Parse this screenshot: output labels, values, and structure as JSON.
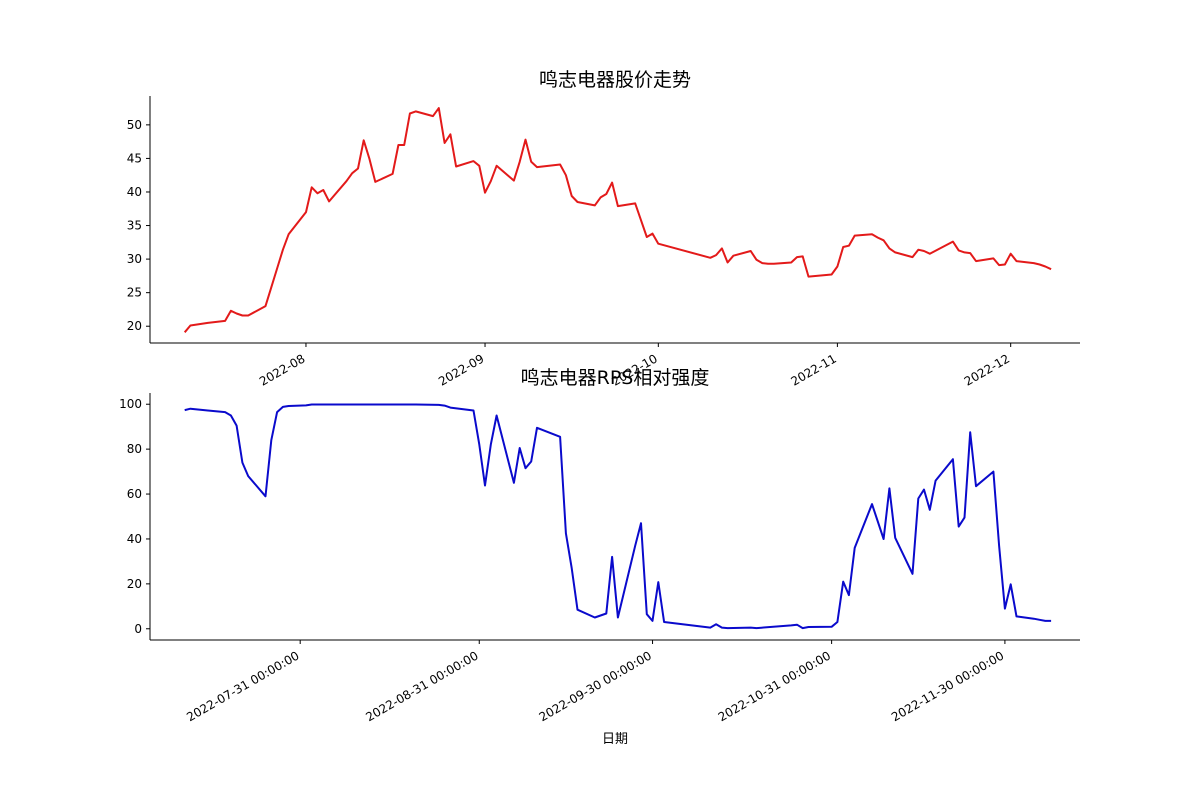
{
  "chart_data": [
    {
      "type": "line",
      "title": "鸣志电器股价走势",
      "xlabel": "",
      "ylabel": "",
      "x_axis": "date",
      "xlim": [
        "2022-07-05",
        "2022-12-13"
      ],
      "ylim": [
        17.5,
        54.3
      ],
      "yticks": [
        20,
        25,
        30,
        35,
        40,
        45,
        50
      ],
      "xticks": [
        "2022-08-01",
        "2022-09-01",
        "2022-10-01",
        "2022-11-01",
        "2022-12-01"
      ],
      "xtick_labels": [
        "2022-08",
        "2022-09",
        "2022-10",
        "2022-11",
        "2022-12"
      ],
      "color": "#e31a1a",
      "grid": false,
      "points": [
        [
          "2022-07-11",
          19.1
        ],
        [
          "2022-07-12",
          20.1
        ],
        [
          "2022-07-15",
          20.5
        ],
        [
          "2022-07-18",
          20.8
        ],
        [
          "2022-07-19",
          22.3
        ],
        [
          "2022-07-20",
          21.9
        ],
        [
          "2022-07-21",
          21.6
        ],
        [
          "2022-07-22",
          21.6
        ],
        [
          "2022-07-25",
          23.0
        ],
        [
          "2022-07-26",
          25.8
        ],
        [
          "2022-07-27",
          28.6
        ],
        [
          "2022-07-28",
          31.4
        ],
        [
          "2022-07-29",
          33.7
        ],
        [
          "2022-08-01",
          37.0
        ],
        [
          "2022-08-02",
          40.7
        ],
        [
          "2022-08-03",
          39.8
        ],
        [
          "2022-08-04",
          40.3
        ],
        [
          "2022-08-05",
          38.6
        ],
        [
          "2022-08-08",
          41.6
        ],
        [
          "2022-08-09",
          42.8
        ],
        [
          "2022-08-10",
          43.5
        ],
        [
          "2022-08-11",
          47.7
        ],
        [
          "2022-08-12",
          44.9
        ],
        [
          "2022-08-13",
          41.5
        ],
        [
          "2022-08-16",
          42.7
        ],
        [
          "2022-08-17",
          47.0
        ],
        [
          "2022-08-18",
          47.0
        ],
        [
          "2022-08-19",
          51.7
        ],
        [
          "2022-08-20",
          52.0
        ],
        [
          "2022-08-23",
          51.3
        ],
        [
          "2022-08-24",
          52.5
        ],
        [
          "2022-08-25",
          47.3
        ],
        [
          "2022-08-26",
          48.6
        ],
        [
          "2022-08-27",
          43.8
        ],
        [
          "2022-08-30",
          44.6
        ],
        [
          "2022-08-31",
          43.9
        ],
        [
          "2022-09-01",
          39.9
        ],
        [
          "2022-09-02",
          41.6
        ],
        [
          "2022-09-03",
          43.9
        ],
        [
          "2022-09-06",
          41.7
        ],
        [
          "2022-09-07",
          44.5
        ],
        [
          "2022-09-08",
          47.8
        ],
        [
          "2022-09-09",
          44.5
        ],
        [
          "2022-09-10",
          43.7
        ],
        [
          "2022-09-14",
          44.1
        ],
        [
          "2022-09-15",
          42.5
        ],
        [
          "2022-09-16",
          39.4
        ],
        [
          "2022-09-17",
          38.5
        ],
        [
          "2022-09-20",
          38.0
        ],
        [
          "2022-09-21",
          39.2
        ],
        [
          "2022-09-22",
          39.7
        ],
        [
          "2022-09-23",
          41.4
        ],
        [
          "2022-09-24",
          37.9
        ],
        [
          "2022-09-27",
          38.3
        ],
        [
          "2022-09-29",
          33.3
        ],
        [
          "2022-09-30",
          33.8
        ],
        [
          "2022-10-01",
          32.3
        ],
        [
          "2022-10-10",
          30.2
        ],
        [
          "2022-10-11",
          30.6
        ],
        [
          "2022-10-12",
          31.6
        ],
        [
          "2022-10-13",
          29.5
        ],
        [
          "2022-10-14",
          30.5
        ],
        [
          "2022-10-17",
          31.2
        ],
        [
          "2022-10-18",
          29.9
        ],
        [
          "2022-10-19",
          29.4
        ],
        [
          "2022-10-20",
          29.3
        ],
        [
          "2022-10-21",
          29.3
        ],
        [
          "2022-10-24",
          29.5
        ],
        [
          "2022-10-25",
          30.3
        ],
        [
          "2022-10-26",
          30.4
        ],
        [
          "2022-10-27",
          27.4
        ],
        [
          "2022-10-31",
          27.7
        ],
        [
          "2022-11-01",
          28.9
        ],
        [
          "2022-11-02",
          31.8
        ],
        [
          "2022-11-03",
          32.0
        ],
        [
          "2022-11-04",
          33.5
        ],
        [
          "2022-11-07",
          33.7
        ],
        [
          "2022-11-08",
          33.2
        ],
        [
          "2022-11-09",
          32.8
        ],
        [
          "2022-11-10",
          31.6
        ],
        [
          "2022-11-11",
          31.0
        ],
        [
          "2022-11-14",
          30.3
        ],
        [
          "2022-11-15",
          31.4
        ],
        [
          "2022-11-16",
          31.2
        ],
        [
          "2022-11-17",
          30.8
        ],
        [
          "2022-11-21",
          32.6
        ],
        [
          "2022-11-22",
          31.3
        ],
        [
          "2022-11-23",
          31.0
        ],
        [
          "2022-11-24",
          30.9
        ],
        [
          "2022-11-25",
          29.7
        ],
        [
          "2022-11-28",
          30.1
        ],
        [
          "2022-11-29",
          29.1
        ],
        [
          "2022-11-30",
          29.2
        ],
        [
          "2022-12-01",
          30.8
        ],
        [
          "2022-12-02",
          29.7
        ],
        [
          "2022-12-05",
          29.4
        ],
        [
          "2022-12-06",
          29.2
        ],
        [
          "2022-12-07",
          28.9
        ],
        [
          "2022-12-08",
          28.5
        ]
      ]
    },
    {
      "type": "line",
      "title": "鸣志电器RPS相对强度",
      "xlabel": "日期",
      "ylabel": "",
      "x_axis": "date",
      "xlim": [
        "2022-07-05",
        "2022-12-13"
      ],
      "ylim": [
        -5,
        105
      ],
      "yticks": [
        0,
        20,
        40,
        60,
        80,
        100
      ],
      "xticks": [
        "2022-07-31",
        "2022-08-31",
        "2022-09-30",
        "2022-10-31",
        "2022-11-30"
      ],
      "xtick_labels": [
        "2022-07-31 00:00:00",
        "2022-08-31 00:00:00",
        "2022-09-30 00:00:00",
        "2022-10-31 00:00:00",
        "2022-11-30 00:00:00"
      ],
      "color": "#0a0acc",
      "grid": false,
      "points": [
        [
          "2022-07-11",
          97.4
        ],
        [
          "2022-07-12",
          98.0
        ],
        [
          "2022-07-15",
          97.2
        ],
        [
          "2022-07-18",
          96.5
        ],
        [
          "2022-07-19",
          95.0
        ],
        [
          "2022-07-20",
          90.5
        ],
        [
          "2022-07-21",
          74.0
        ],
        [
          "2022-07-22",
          68.0
        ],
        [
          "2022-07-25",
          59.0
        ],
        [
          "2022-07-26",
          84.0
        ],
        [
          "2022-07-27",
          96.5
        ],
        [
          "2022-07-28",
          98.8
        ],
        [
          "2022-07-29",
          99.2
        ],
        [
          "2022-08-01",
          99.5
        ],
        [
          "2022-08-02",
          99.9
        ],
        [
          "2022-08-10",
          99.9
        ],
        [
          "2022-08-20",
          99.9
        ],
        [
          "2022-08-24",
          99.7
        ],
        [
          "2022-08-25",
          99.4
        ],
        [
          "2022-08-26",
          98.5
        ],
        [
          "2022-08-30",
          97.2
        ],
        [
          "2022-08-31",
          82.0
        ],
        [
          "2022-09-01",
          63.8
        ],
        [
          "2022-09-02",
          82.0
        ],
        [
          "2022-09-03",
          95.0
        ],
        [
          "2022-09-06",
          65.0
        ],
        [
          "2022-09-07",
          80.5
        ],
        [
          "2022-09-08",
          71.5
        ],
        [
          "2022-09-09",
          74.5
        ],
        [
          "2022-09-10",
          89.5
        ],
        [
          "2022-09-14",
          85.5
        ],
        [
          "2022-09-15",
          42.5
        ],
        [
          "2022-09-16",
          27.0
        ],
        [
          "2022-09-17",
          8.5
        ],
        [
          "2022-09-20",
          5.0
        ],
        [
          "2022-09-22",
          6.8
        ],
        [
          "2022-09-23",
          32.0
        ],
        [
          "2022-09-24",
          5.0
        ],
        [
          "2022-09-27",
          37.0
        ],
        [
          "2022-09-28",
          47.0
        ],
        [
          "2022-09-29",
          6.5
        ],
        [
          "2022-09-30",
          3.5
        ],
        [
          "2022-10-01",
          20.8
        ],
        [
          "2022-10-02",
          3.0
        ],
        [
          "2022-10-10",
          0.5
        ],
        [
          "2022-10-11",
          2.0
        ],
        [
          "2022-10-12",
          0.5
        ],
        [
          "2022-10-13",
          0.3
        ],
        [
          "2022-10-17",
          0.5
        ],
        [
          "2022-10-18",
          0.3
        ],
        [
          "2022-10-24",
          1.5
        ],
        [
          "2022-10-25",
          1.8
        ],
        [
          "2022-10-26",
          0.3
        ],
        [
          "2022-10-27",
          0.8
        ],
        [
          "2022-10-31",
          0.9
        ],
        [
          "2022-11-01",
          3.0
        ],
        [
          "2022-11-02",
          21.0
        ],
        [
          "2022-11-03",
          15.0
        ],
        [
          "2022-11-04",
          36.0
        ],
        [
          "2022-11-07",
          55.5
        ],
        [
          "2022-11-09",
          40.0
        ],
        [
          "2022-11-10",
          62.5
        ],
        [
          "2022-11-11",
          40.5
        ],
        [
          "2022-11-14",
          24.5
        ],
        [
          "2022-11-15",
          58.0
        ],
        [
          "2022-11-16",
          62.0
        ],
        [
          "2022-11-17",
          53.0
        ],
        [
          "2022-11-18",
          66.0
        ],
        [
          "2022-11-21",
          75.5
        ],
        [
          "2022-11-22",
          45.5
        ],
        [
          "2022-11-23",
          49.5
        ],
        [
          "2022-11-24",
          87.5
        ],
        [
          "2022-11-25",
          63.5
        ],
        [
          "2022-11-28",
          70.0
        ],
        [
          "2022-11-29",
          37.0
        ],
        [
          "2022-11-30",
          9.0
        ],
        [
          "2022-12-01",
          19.8
        ],
        [
          "2022-12-02",
          5.5
        ],
        [
          "2022-12-05",
          4.5
        ],
        [
          "2022-12-06",
          4.0
        ],
        [
          "2022-12-07",
          3.5
        ],
        [
          "2022-12-08",
          3.5
        ]
      ]
    }
  ]
}
